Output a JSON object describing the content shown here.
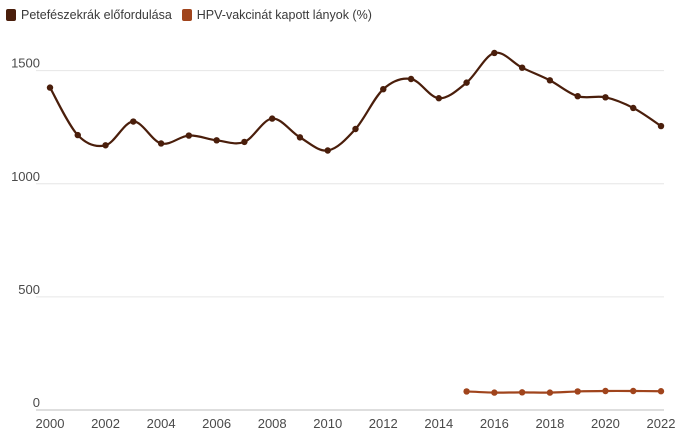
{
  "chart_data": {
    "type": "line",
    "title": "",
    "xlabel": "",
    "ylabel": "",
    "xlim": [
      2000,
      2022
    ],
    "ylim": [
      0,
      1600
    ],
    "grid": true,
    "legend_position": "top-left",
    "x_ticks": [
      "2000",
      "2002",
      "2004",
      "2006",
      "2008",
      "2010",
      "2012",
      "2014",
      "2016",
      "2018",
      "2020",
      "2022"
    ],
    "y_ticks": [
      "0",
      "500",
      "1000",
      "1500"
    ],
    "series": [
      {
        "name": "Petefészekrák előfordulása",
        "color": "#4a1e0b",
        "x": [
          2000,
          2001,
          2002,
          2003,
          2004,
          2005,
          2006,
          2007,
          2008,
          2009,
          2010,
          2011,
          2012,
          2013,
          2014,
          2015,
          2016,
          2017,
          2018,
          2019,
          2020,
          2021,
          2022
        ],
        "values": [
          1425,
          1215,
          1170,
          1275,
          1178,
          1213,
          1192,
          1185,
          1288,
          1205,
          1147,
          1242,
          1418,
          1463,
          1378,
          1447,
          1578,
          1513,
          1457,
          1387,
          1382,
          1335,
          1255
        ]
      },
      {
        "name": "HPV-vakcinát kapott lányok (%)",
        "color": "#a0441c",
        "x": [
          2015,
          2016,
          2017,
          2018,
          2019,
          2020,
          2021,
          2022
        ],
        "values": [
          82,
          77,
          78,
          77,
          82,
          84,
          84,
          83
        ]
      }
    ]
  }
}
